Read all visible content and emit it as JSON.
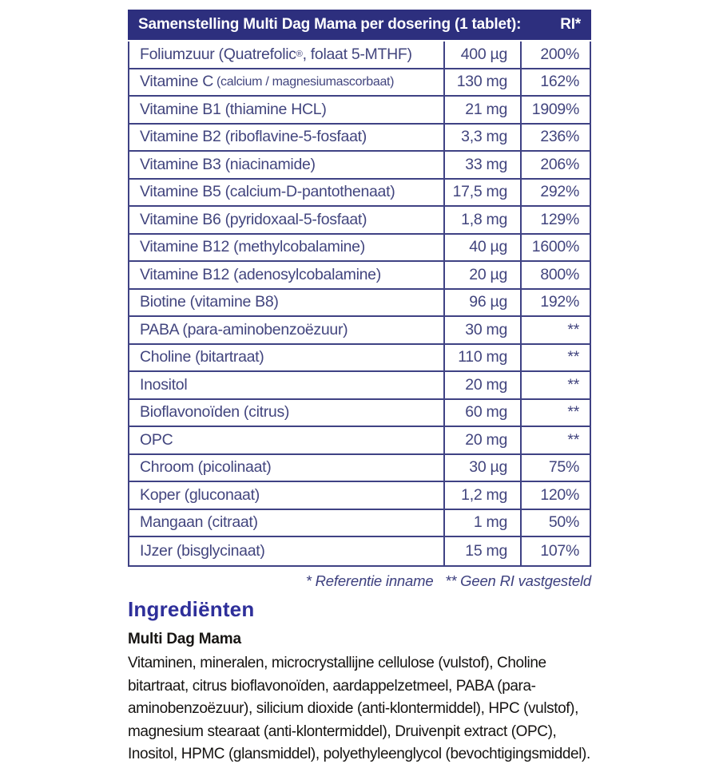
{
  "colors": {
    "header_bg": "#2d2f7e",
    "table_border": "#3f4284",
    "table_text": "#42457e",
    "heading_blue": "#2e2f9a",
    "body_text": "#161412"
  },
  "table": {
    "header": {
      "title": "Samenstelling Multi Dag Mama per dosering (1 tablet):",
      "ri_label": "RI*"
    },
    "rows": [
      {
        "label": "Foliumzuur (Quatrefolic®, folaat 5-MTHF)",
        "amount": "400 µg",
        "ri": "200%"
      },
      {
        "label": "Vitamine C",
        "label_small": "(calcium / magnesiumascorbaat)",
        "amount": "130 mg",
        "ri": "162%"
      },
      {
        "label": "Vitamine B1 (thiamine HCL)",
        "amount": "21 mg",
        "ri": "1909%"
      },
      {
        "label": "Vitamine B2 (riboflavine-5-fosfaat)",
        "amount": "3,3 mg",
        "ri": "236%"
      },
      {
        "label": "Vitamine B3 (niacinamide)",
        "amount": "33 mg",
        "ri": "206%"
      },
      {
        "label": "Vitamine B5 (calcium-D-pantothenaat)",
        "amount": "17,5 mg",
        "ri": "292%"
      },
      {
        "label": "Vitamine B6 (pyridoxaal-5-fosfaat)",
        "amount": "1,8 mg",
        "ri": "129%"
      },
      {
        "label": "Vitamine B12 (methylcobalamine)",
        "amount": "40 µg",
        "ri": "1600%"
      },
      {
        "label": "Vitamine B12 (adenosylcobalamine)",
        "amount": "20 µg",
        "ri": "800%"
      },
      {
        "label": "Biotine (vitamine B8)",
        "amount": "96 µg",
        "ri": "192%"
      },
      {
        "label": "PABA (para-aminobenzoëzuur)",
        "amount": "30 mg",
        "ri": "**"
      },
      {
        "label": "Choline (bitartraat)",
        "amount": "110 mg",
        "ri": "**"
      },
      {
        "label": "Inositol",
        "amount": "20 mg",
        "ri": "**"
      },
      {
        "label": "Bioflavonoïden (citrus)",
        "amount": "60 mg",
        "ri": "**"
      },
      {
        "label": "OPC",
        "amount": "20 mg",
        "ri": "**"
      },
      {
        "label": "Chroom (picolinaat)",
        "amount": "30 µg",
        "ri": "75%"
      },
      {
        "label": "Koper (gluconaat)",
        "amount": "1,2 mg",
        "ri": "120%"
      },
      {
        "label": "Mangaan (citraat)",
        "amount": "1 mg",
        "ri": "50%"
      },
      {
        "label": "IJzer (bisglycinaat)",
        "amount": "15 mg",
        "ri": "107%"
      }
    ],
    "footnote": "* Referentie inname   ** Geen RI vastgesteld"
  },
  "ingredients": {
    "heading": "Ingrediënten",
    "product_name": "Multi Dag Mama",
    "body": "Vitaminen, mineralen, microcrystallijne cellulose (vulstof), Choline\nbitartraat, citrus bioflavonoïden, aardappelzetmeel, PABA (para-\naminobenzoëzuur), silicium dioxide (anti-klontermiddel), HPC (vulstof),\nmagnesium stearaat (anti-klontermiddel), Druivenpit extract (OPC),\nInositol, HPMC (glansmiddel), polyethyleenglycol (bevochtigingsmiddel)."
  }
}
